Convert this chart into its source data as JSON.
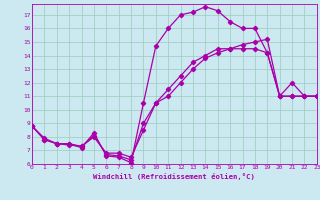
{
  "xlabel": "Windchill (Refroidissement éolien,°C)",
  "bg_color": "#cce8f0",
  "line_color": "#aa00aa",
  "grid_color": "#99ccbb",
  "xlim": [
    0,
    23
  ],
  "ylim": [
    6,
    17.8
  ],
  "xticks": [
    0,
    1,
    2,
    3,
    4,
    5,
    6,
    7,
    8,
    9,
    10,
    11,
    12,
    13,
    14,
    15,
    16,
    17,
    18,
    19,
    20,
    21,
    22,
    23
  ],
  "yticks": [
    6,
    7,
    8,
    9,
    10,
    11,
    12,
    13,
    14,
    15,
    16,
    17
  ],
  "series1_x": [
    0,
    1,
    2,
    3,
    4,
    5,
    6,
    7,
    8,
    9,
    10,
    11,
    12,
    13,
    14,
    15,
    16,
    17,
    18,
    19,
    20,
    21,
    22,
    23
  ],
  "series1_y": [
    8.8,
    7.8,
    7.5,
    7.5,
    7.2,
    8.3,
    6.6,
    6.5,
    6.1,
    10.5,
    14.7,
    16.0,
    17.0,
    17.2,
    17.6,
    17.3,
    16.5,
    16.0,
    16.0,
    14.2,
    11.0,
    12.0,
    11.0,
    11.0
  ],
  "series2_x": [
    0,
    1,
    2,
    3,
    4,
    5,
    6,
    7,
    8,
    9,
    10,
    11,
    12,
    13,
    14,
    15,
    16,
    17,
    18,
    19,
    20,
    21,
    22,
    23
  ],
  "series2_y": [
    8.8,
    7.8,
    7.5,
    7.4,
    7.3,
    8.0,
    6.8,
    6.8,
    6.5,
    8.5,
    10.5,
    11.5,
    12.5,
    13.5,
    14.0,
    14.5,
    14.5,
    14.5,
    14.5,
    14.2,
    11.0,
    11.0,
    11.0,
    11.0
  ],
  "series3_x": [
    0,
    1,
    2,
    3,
    4,
    5,
    6,
    7,
    8,
    9,
    10,
    11,
    12,
    13,
    14,
    15,
    16,
    17,
    18,
    19,
    20,
    21,
    22,
    23
  ],
  "series3_y": [
    8.8,
    7.9,
    7.5,
    7.5,
    7.3,
    8.1,
    6.7,
    6.6,
    6.3,
    9.0,
    10.5,
    11.0,
    12.0,
    13.0,
    13.8,
    14.2,
    14.5,
    14.8,
    15.0,
    15.2,
    11.0,
    11.0,
    11.0,
    11.0
  ],
  "marker": "D",
  "markersize": 2.2,
  "linewidth": 0.9
}
